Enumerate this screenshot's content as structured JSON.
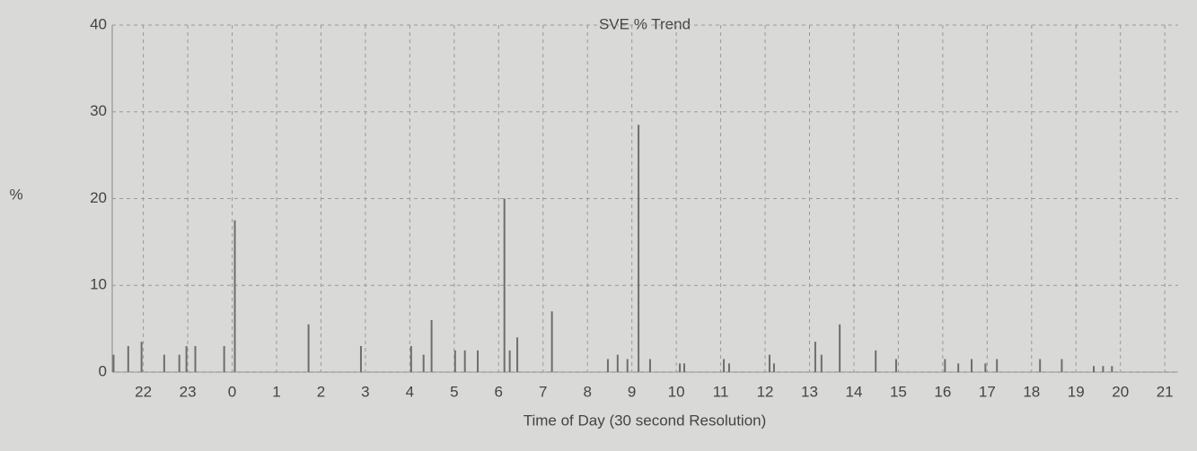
{
  "chart_data": {
    "type": "bar",
    "title": "SVE % Trend",
    "y_label": "%",
    "x_label": "Time of Day (30 second Resolution)",
    "x": [
      21.33,
      21.66,
      21.96,
      22.47,
      22.81,
      22.97,
      23.17,
      23.82,
      24.06,
      25.72,
      26.9,
      28.03,
      28.31,
      28.49,
      29.02,
      29.24,
      29.53,
      30.13,
      30.25,
      30.42,
      31.2,
      32.46,
      32.68,
      32.9,
      33.15,
      33.41,
      34.08,
      34.18,
      35.07,
      35.19,
      36.1,
      36.2,
      37.13,
      37.27,
      37.68,
      38.49,
      38.95,
      40.05,
      40.35,
      40.65,
      40.96,
      41.22,
      42.19,
      42.68,
      43.4,
      43.61,
      43.81
    ],
    "values": [
      2,
      3,
      3.5,
      2,
      2,
      3,
      3,
      3,
      17.5,
      5.5,
      3,
      3,
      2,
      6,
      2.5,
      2.5,
      2.5,
      20,
      2.5,
      4,
      7,
      1.5,
      2,
      1.5,
      28.5,
      1.5,
      1,
      1,
      1.5,
      1,
      2,
      1,
      3.5,
      2,
      5.5,
      2.5,
      1.5,
      1.5,
      1,
      1.5,
      1,
      1.5,
      1.5,
      1.5,
      0.7,
      0.7,
      0.7
    ],
    "color": "#6e6e6e",
    "xlim": [
      21.3,
      45.3
    ],
    "xticks": [
      22,
      23,
      {
        "value": 24,
        "label": "0"
      },
      {
        "value": 25,
        "label": "1"
      },
      {
        "value": 26,
        "label": "2"
      },
      {
        "value": 27,
        "label": "3"
      },
      {
        "value": 28,
        "label": "4"
      },
      {
        "value": 29,
        "label": "5"
      },
      {
        "value": 30,
        "label": "6"
      },
      {
        "value": 31,
        "label": "7"
      },
      {
        "value": 32,
        "label": "8"
      },
      {
        "value": 33,
        "label": "9"
      },
      {
        "value": 34,
        "label": "10"
      },
      {
        "value": 35,
        "label": "11"
      },
      {
        "value": 36,
        "label": "12"
      },
      {
        "value": 37,
        "label": "13"
      },
      {
        "value": 38,
        "label": "14"
      },
      {
        "value": 39,
        "label": "15"
      },
      {
        "value": 40,
        "label": "16"
      },
      {
        "value": 41,
        "label": "17"
      },
      {
        "value": 42,
        "label": "18"
      },
      {
        "value": 43,
        "label": "19"
      },
      {
        "value": 44,
        "label": "20"
      },
      {
        "value": 45,
        "label": "21"
      }
    ],
    "ylim": [
      0,
      40
    ],
    "yticks": [
      0,
      10,
      20,
      30,
      40
    ],
    "grid": true
  }
}
